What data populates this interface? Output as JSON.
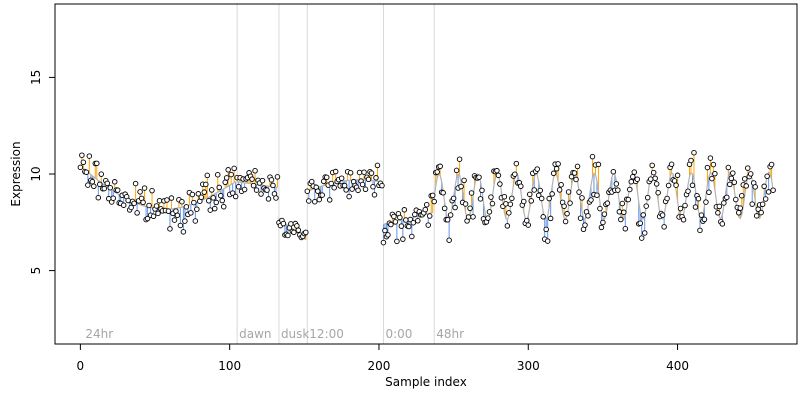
{
  "chart_data": {
    "type": "scatter",
    "title": "",
    "xlabel": "Sample index",
    "ylabel": "Expression",
    "xlim": [
      -17,
      480
    ],
    "ylim": [
      1.2,
      18.8
    ],
    "xticks": [
      "0",
      "100",
      "200",
      "300",
      "400"
    ],
    "yticks": [
      "5",
      "10",
      "15"
    ],
    "grid": false,
    "colors": {
      "above_smooth": "#ffa500",
      "below_smooth": "#6495ed",
      "smooth_line": "#b3b3b3",
      "phase_line": "#d9d9d9",
      "phase_text": "#a6a6a6",
      "point_fill": "#ffffff",
      "point_stroke": "#000000"
    },
    "phase_markers": [
      {
        "x": 2,
        "label": "24hr"
      },
      {
        "x": 105,
        "label": "dawn"
      },
      {
        "x": 133,
        "label": "dusk"
      },
      {
        "x": 152,
        "label": "12:00"
      },
      {
        "x": 203,
        "label": "0:00"
      },
      {
        "x": 237,
        "label": "48hr"
      }
    ],
    "segments": [
      {
        "start": 0,
        "end": 105,
        "pattern": "noise",
        "ya": 10.4,
        "yb": 9.6,
        "noise": 0.8,
        "sag": 1.8
      },
      {
        "start": 105,
        "end": 133,
        "pattern": "noise",
        "ya": 9.6,
        "yb": 9.3,
        "noise": 0.6,
        "sag": 0
      },
      {
        "start": 133,
        "end": 152,
        "pattern": "noise",
        "ya": 7.7,
        "yb": 6.6,
        "noise": 0.5,
        "sag": 0
      },
      {
        "start": 152,
        "end": 203,
        "pattern": "noise",
        "ya": 9.1,
        "yb": 9.6,
        "noise": 0.7,
        "sag": -0.3
      },
      {
        "start": 203,
        "end": 237,
        "pattern": "noise",
        "ya": 7.4,
        "yb": 8.0,
        "noise": 0.8,
        "sag": 0
      },
      {
        "start": 237,
        "end": 465,
        "pattern": "wave",
        "ya": 8.8,
        "yb": 8.9,
        "noise": 0.9,
        "amp": 1.2,
        "period": 13
      }
    ],
    "n_points": 465
  }
}
